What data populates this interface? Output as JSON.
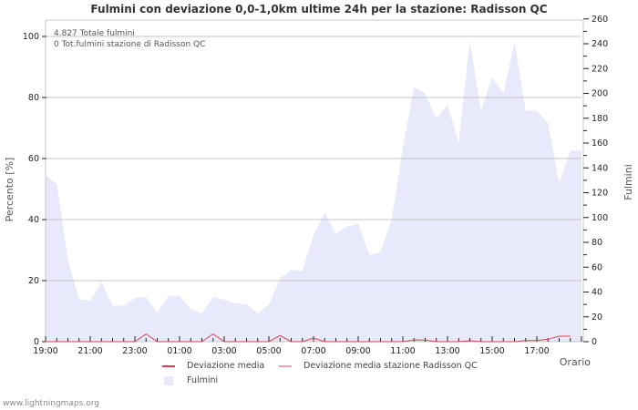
{
  "title": "Fulmini con deviazione 0,0-1,0km ultime 24h per la stazione: Radisson QC",
  "annotations": [
    "4.827 Totale fulmini",
    "0 Tot.fulmini stazione di Radisson QC"
  ],
  "footer": "www.lightningmaps.org",
  "legend": [
    {
      "label": "Deviazione media",
      "color": "#d9434e",
      "type": "line"
    },
    {
      "label": "Deviazione media stazione Radisson QC",
      "color": "#f4a0a8",
      "type": "line"
    },
    {
      "label": "Fulmini",
      "color": "#e9e9fc",
      "type": "area"
    }
  ],
  "colors": {
    "area": "#e9e9fc",
    "deviation": "#d9434e",
    "grid": "#c8c8c8"
  },
  "chart_data": {
    "type": "area",
    "title": "Fulmini con deviazione 0,0-1,0km ultime 24h per la stazione: Radisson QC",
    "xlabel": "Orario",
    "ylabel": "Percento   [%]",
    "y2label": "Fulmini",
    "ylim": [
      0,
      100
    ],
    "y2lim": [
      0,
      260
    ],
    "yticks": [
      0,
      20,
      40,
      60,
      80,
      100
    ],
    "y2ticks": [
      0,
      20,
      40,
      60,
      80,
      100,
      120,
      140,
      160,
      180,
      200,
      220,
      240,
      260
    ],
    "xtick_labels": [
      "19:00",
      "21:00",
      "23:00",
      "01:00",
      "03:00",
      "05:00",
      "07:00",
      "09:00",
      "11:00",
      "13:00",
      "15:00",
      "17:00"
    ],
    "grid": true,
    "legend_position": "bottom",
    "x": [
      "19:00",
      "19:30",
      "20:00",
      "20:30",
      "21:00",
      "21:30",
      "22:00",
      "22:30",
      "23:00",
      "23:30",
      "00:00",
      "00:30",
      "01:00",
      "01:30",
      "02:00",
      "02:30",
      "03:00",
      "03:30",
      "04:00",
      "04:30",
      "05:00",
      "05:30",
      "06:00",
      "06:30",
      "07:00",
      "07:30",
      "08:00",
      "08:30",
      "09:00",
      "09:30",
      "10:00",
      "10:30",
      "11:00",
      "11:30",
      "12:00",
      "12:30",
      "13:00",
      "13:30",
      "14:00",
      "14:30",
      "15:00",
      "15:30",
      "16:00",
      "16:30",
      "17:00",
      "17:30",
      "18:00",
      "18:30"
    ],
    "series": [
      {
        "name": "Fulmini",
        "axis": "right",
        "values": [
          134,
          127,
          66,
          34,
          33,
          48,
          29,
          29,
          35,
          36,
          23,
          37,
          37,
          26,
          23,
          36,
          34,
          31,
          30,
          23,
          30,
          51,
          58,
          57,
          86,
          104,
          87,
          93,
          95,
          70,
          72,
          99,
          156,
          205,
          200,
          180,
          191,
          160,
          243,
          186,
          213,
          200,
          241,
          186,
          186,
          176,
          128,
          154
        ]
      },
      {
        "name": "Deviazione media",
        "axis": "left",
        "values": [
          0,
          0,
          0,
          0,
          0,
          0,
          0,
          0,
          0,
          2.5,
          0,
          0,
          0,
          0,
          0,
          2.5,
          0,
          0,
          0,
          0,
          0,
          2,
          0,
          0,
          1.2,
          0,
          0,
          0,
          0,
          0,
          0,
          0,
          0,
          0.6,
          0.5,
          0,
          0,
          0,
          0.3,
          0,
          0,
          0,
          0,
          0.4,
          0.4,
          0.8,
          1.8,
          1.8
        ]
      },
      {
        "name": "Deviazione media stazione Radisson QC",
        "axis": "left",
        "values": []
      }
    ],
    "totals": {
      "total_strikes": "4.827",
      "station_strikes": "0"
    }
  }
}
